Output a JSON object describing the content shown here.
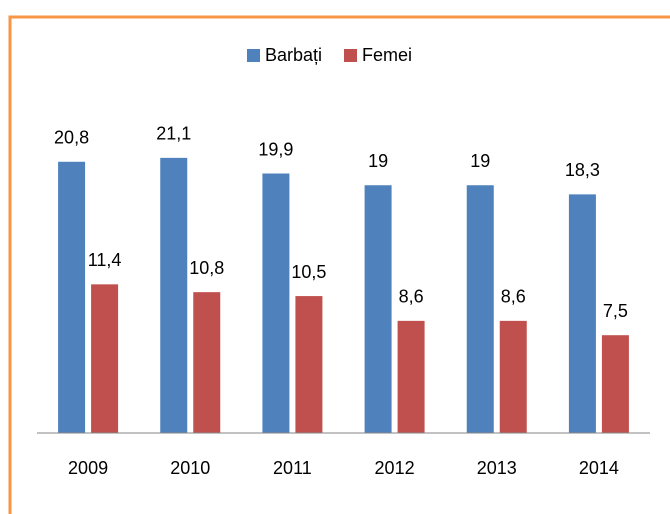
{
  "chart_data": {
    "type": "bar",
    "categories": [
      "2009",
      "2010",
      "2011",
      "2012",
      "2013",
      "2014"
    ],
    "series": [
      {
        "name": "Barbați",
        "color": "#4f81bd",
        "values": [
          20.8,
          21.1,
          19.9,
          19,
          19,
          18.3
        ],
        "value_labels": [
          "20,8",
          "21,1",
          "19,9",
          "19",
          "19",
          "18,3"
        ]
      },
      {
        "name": "Femei",
        "color": "#c0504d",
        "values": [
          11.4,
          10.8,
          10.5,
          8.6,
          8.6,
          7.5
        ],
        "value_labels": [
          "11,4",
          "10,8",
          "10,5",
          "8,6",
          "8,6",
          "7,5"
        ]
      }
    ],
    "ylim": [
      0,
      25
    ],
    "legend": "top"
  }
}
